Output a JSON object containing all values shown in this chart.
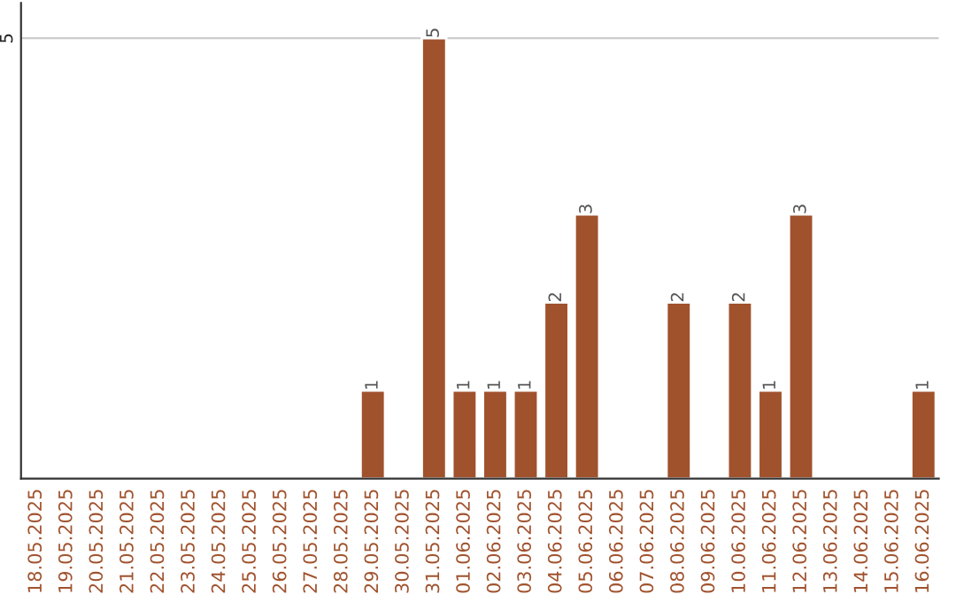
{
  "chart_data": {
    "type": "bar",
    "categories": [
      "18.05.2025",
      "19.05.2025",
      "20.05.2025",
      "21.05.2025",
      "22.05.2025",
      "23.05.2025",
      "24.05.2025",
      "25.05.2025",
      "26.05.2025",
      "27.05.2025",
      "28.05.2025",
      "29.05.2025",
      "30.05.2025",
      "31.05.2025",
      "01.06.2025",
      "02.06.2025",
      "03.06.2025",
      "04.06.2025",
      "05.06.2025",
      "06.06.2025",
      "07.06.2025",
      "08.06.2025",
      "09.06.2025",
      "10.06.2025",
      "11.06.2025",
      "12.06.2025",
      "13.06.2025",
      "14.06.2025",
      "15.06.2025",
      "16.06.2025"
    ],
    "values": [
      null,
      null,
      null,
      null,
      null,
      null,
      null,
      null,
      null,
      null,
      null,
      1,
      null,
      5,
      1,
      1,
      1,
      2,
      3,
      null,
      null,
      2,
      null,
      2,
      1,
      3,
      null,
      null,
      null,
      1
    ],
    "value_labels": [
      null,
      null,
      null,
      null,
      null,
      null,
      null,
      null,
      null,
      null,
      null,
      "1",
      null,
      "5",
      "1",
      "1",
      "1",
      "2",
      "3",
      null,
      null,
      "2",
      null,
      "2",
      "1",
      "3",
      null,
      null,
      null,
      "1"
    ],
    "color": "#a0522d",
    "ylim": [
      0,
      5.4
    ],
    "yticks": [
      5
    ],
    "grid": "y",
    "legend": false
  }
}
